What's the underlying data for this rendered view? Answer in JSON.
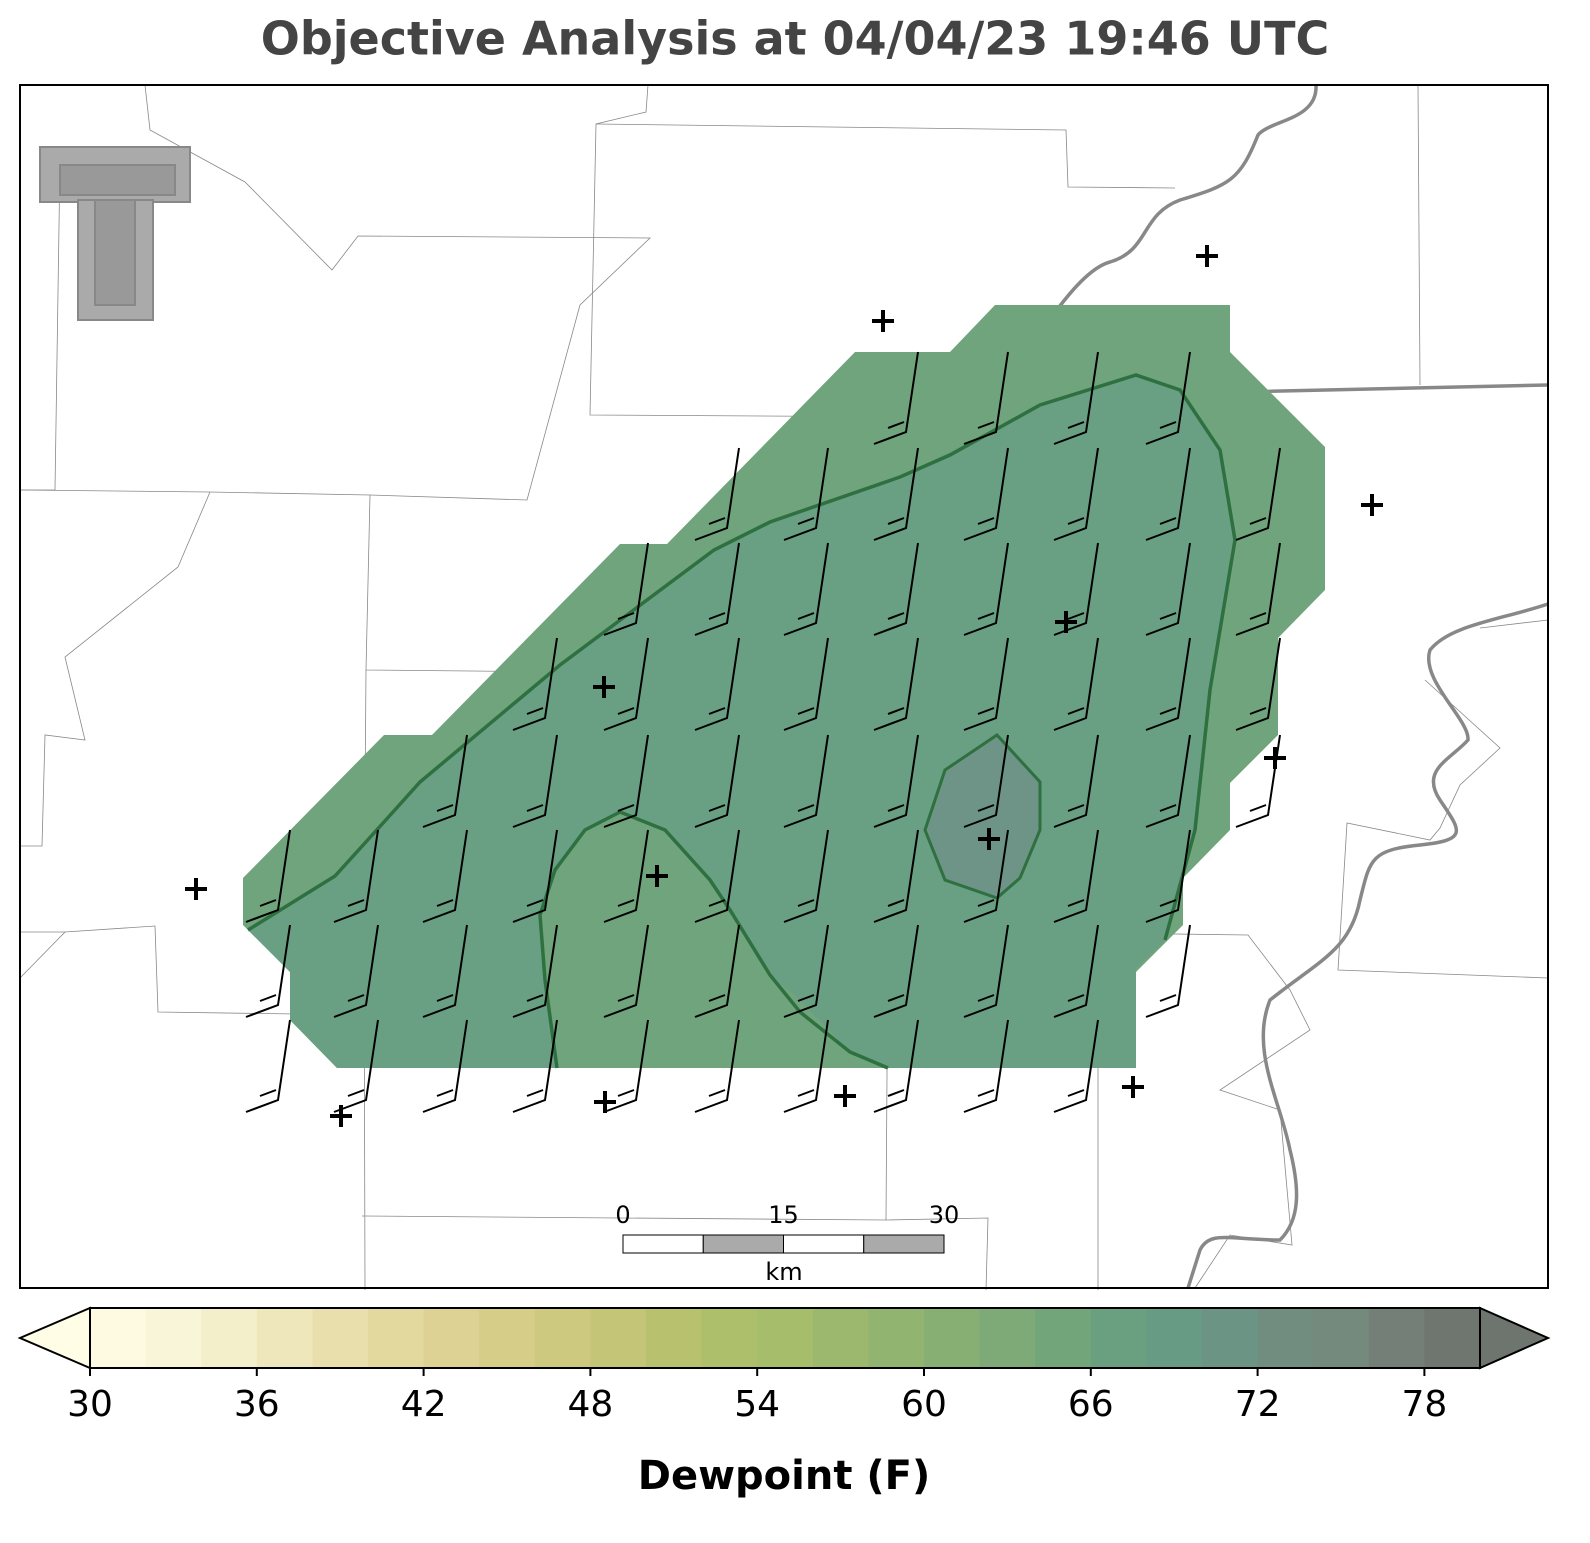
{
  "header": {
    "title": "Objective Analysis at 04/04/23 19:46 UTC"
  },
  "scale_bar": {
    "xlim": [
      0,
      30
    ],
    "xticks": [
      0,
      15,
      30
    ],
    "unit": "km"
  },
  "chart_data": {
    "type": "colorbar",
    "xlabel": "Dewpoint (F)",
    "xlim": [
      30,
      80
    ],
    "xticks": [
      30,
      36,
      42,
      48,
      54,
      60,
      66,
      72,
      78
    ],
    "bins": [
      30,
      32,
      34,
      36,
      38,
      40,
      42,
      44,
      46,
      48,
      50,
      52,
      54,
      56,
      58,
      60,
      62,
      64,
      66,
      68,
      70,
      72,
      74,
      76,
      78,
      80
    ],
    "colors": [
      "#fdfae1",
      "#f9f5d8",
      "#f4efcb",
      "#efe7bc",
      "#e9dfad",
      "#e3d89e",
      "#ddd294",
      "#d5cd88",
      "#cdc97e",
      "#c4c576",
      "#b8c16e",
      "#adbf6a",
      "#a6bd6b",
      "#9cb86e",
      "#92b471",
      "#87af74",
      "#7daa77",
      "#73a57b",
      "#6aa07f",
      "#679b83",
      "#6b9484",
      "#708d80",
      "#748a7c",
      "#737f77",
      "#6f766f"
    ],
    "under_color": "#fffde6",
    "over_color": "#6e756e"
  }
}
